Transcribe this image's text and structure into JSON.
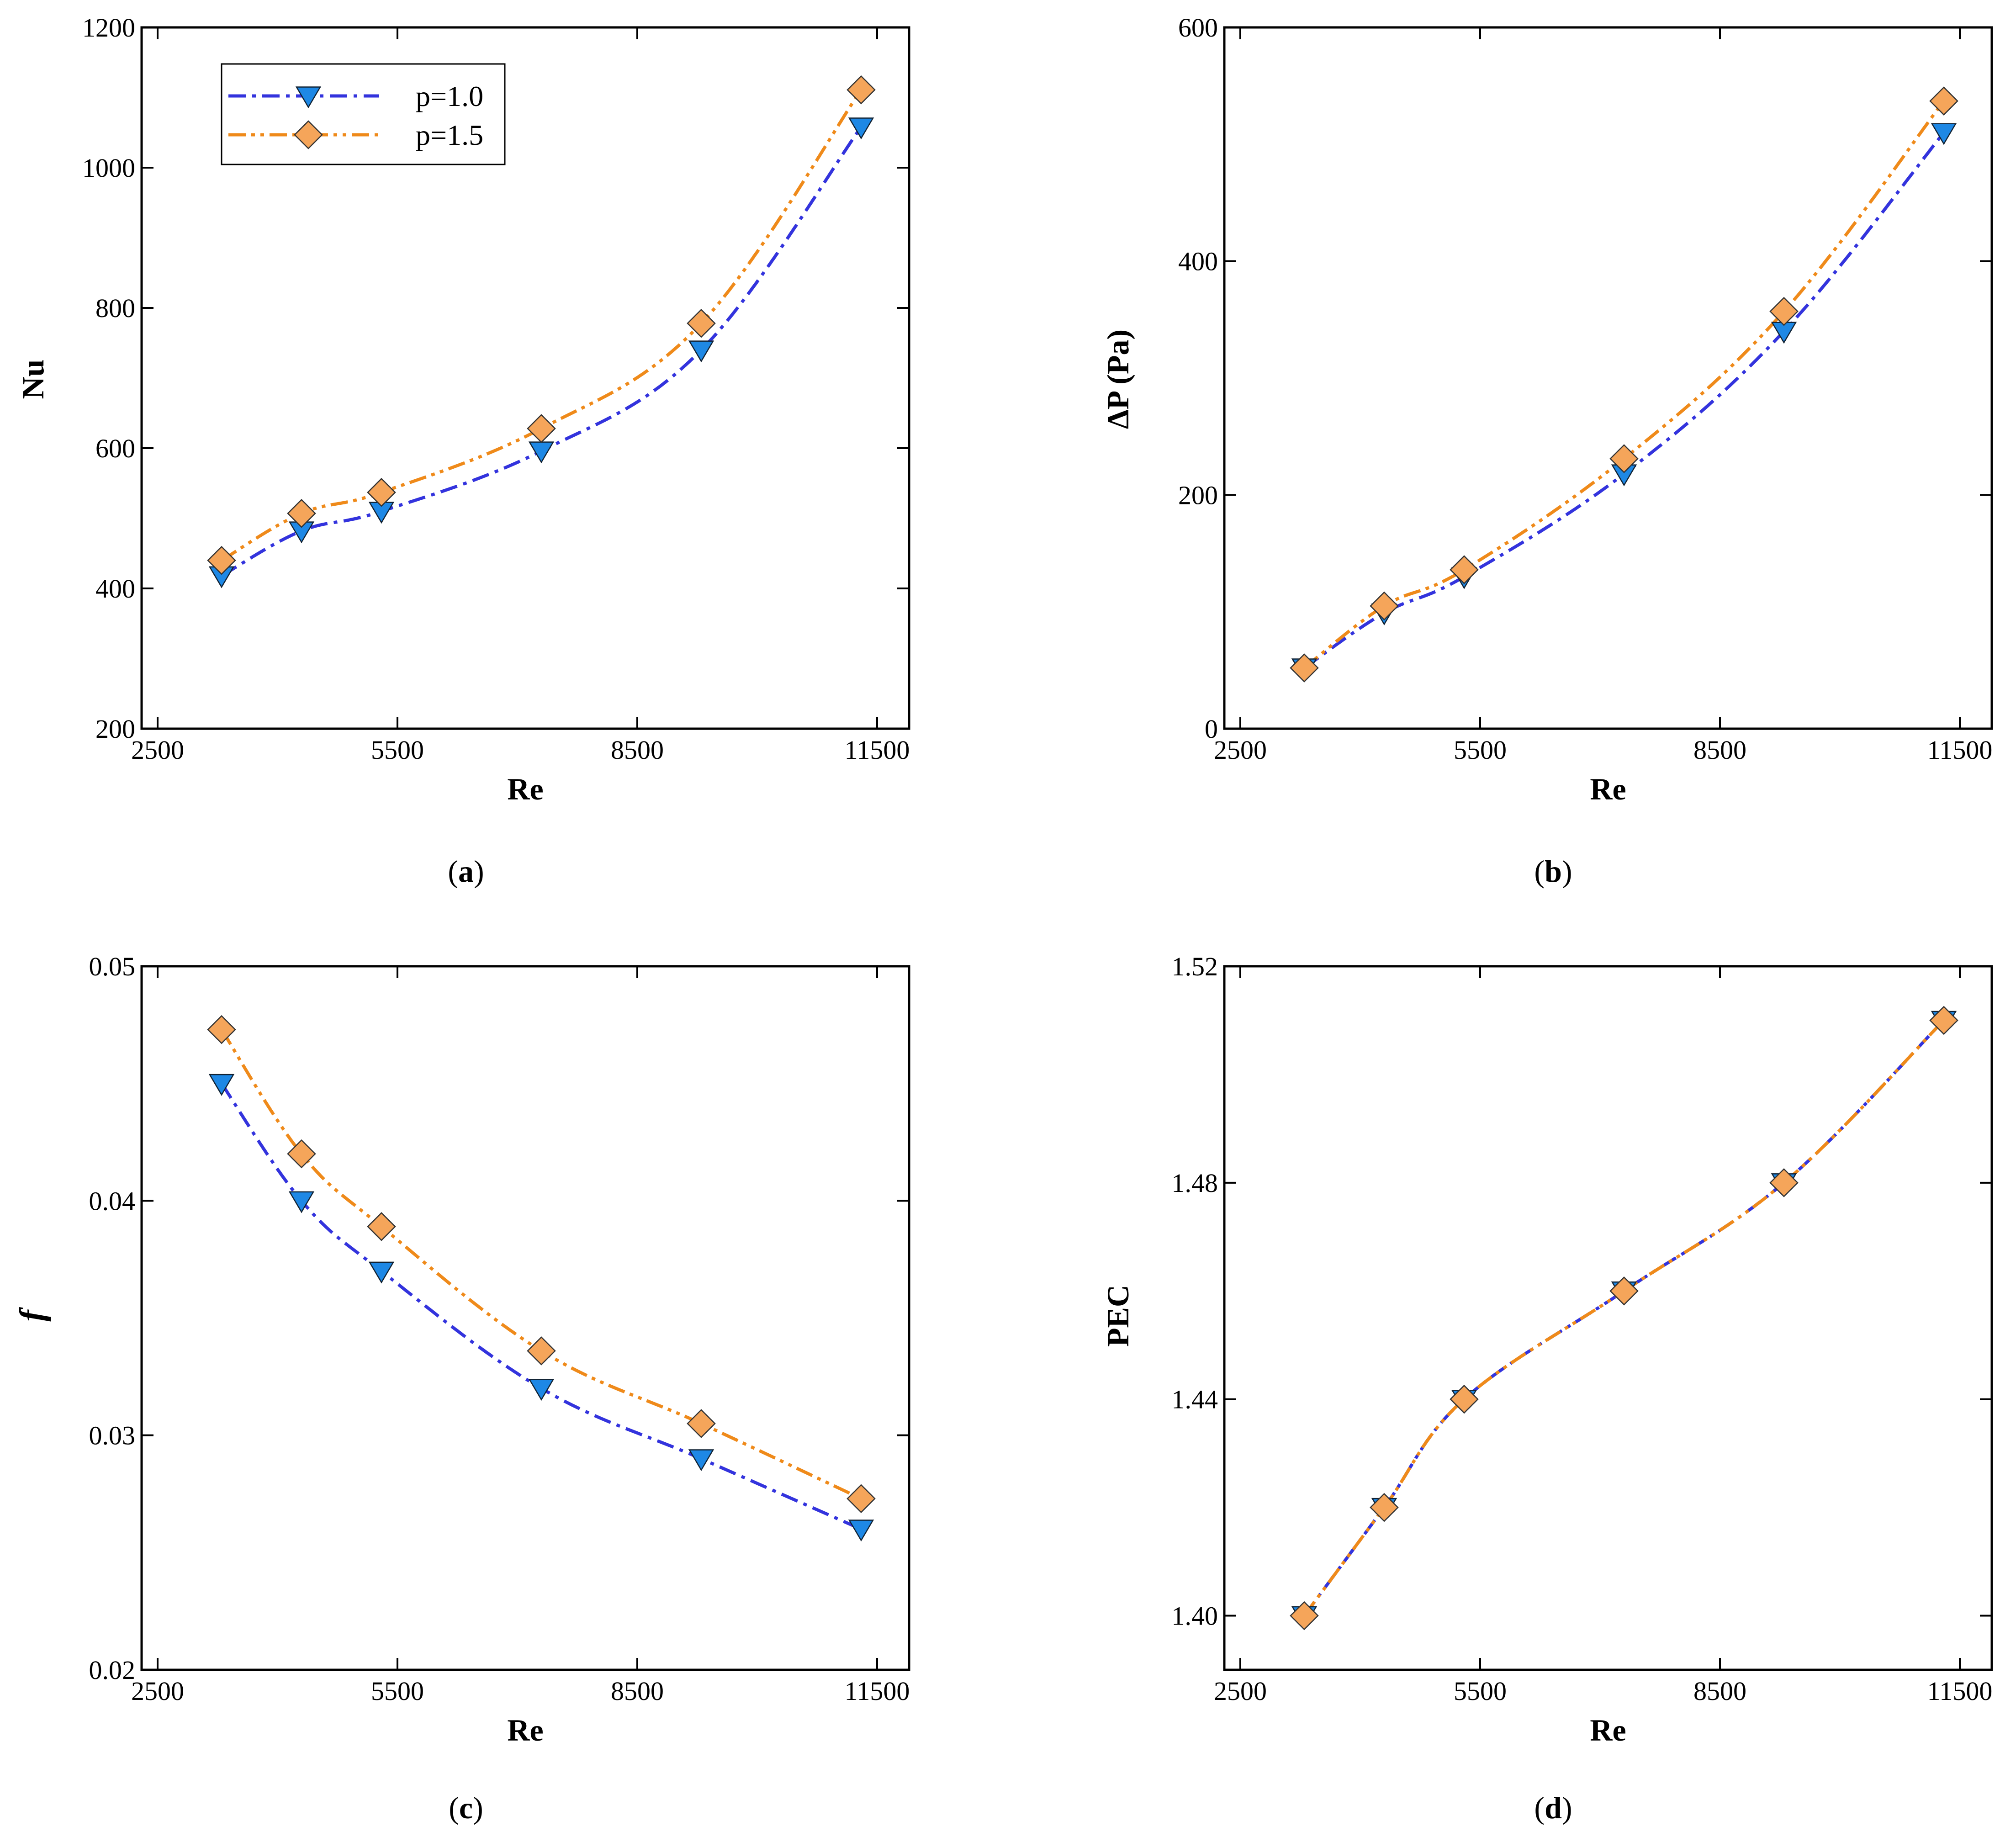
{
  "chart_data": [
    {
      "id": "a",
      "type": "line",
      "panel_label": "a",
      "xlabel": "Re",
      "ylabel": "Nu",
      "ylabel_style": "bold",
      "xlim": [
        2300,
        11900
      ],
      "ylim": [
        200,
        1200
      ],
      "xticks": [
        2500,
        5500,
        8500,
        11500
      ],
      "xtick_labels": [
        "2500",
        "5500",
        "8500",
        "11500"
      ],
      "yticks": [
        200,
        400,
        600,
        800,
        1000,
        1200
      ],
      "ytick_labels": [
        "200",
        "400",
        "600",
        "800",
        "1000",
        "1200"
      ],
      "x": [
        3300,
        4300,
        5300,
        7300,
        9300,
        11300
      ],
      "series": [
        {
          "name": "p=1.0",
          "values": [
            418,
            482,
            510,
            596,
            740,
            1058
          ]
        },
        {
          "name": "p=1.5",
          "values": [
            440,
            507,
            537,
            628,
            778,
            1111
          ]
        }
      ],
      "legend": "top-left"
    },
    {
      "id": "b",
      "type": "line",
      "panel_label": "b",
      "xlabel": "Re",
      "ylabel": "ΔP (Pa)",
      "ylabel_style": "bold",
      "xlim": [
        2300,
        11900
      ],
      "ylim": [
        0,
        600
      ],
      "xticks": [
        2500,
        5500,
        8500,
        11500
      ],
      "xtick_labels": [
        "2500",
        "5500",
        "8500",
        "11500"
      ],
      "yticks": [
        0,
        200,
        400,
        600
      ],
      "ytick_labels": [
        "0",
        "200",
        "400",
        "600"
      ],
      "x": [
        3300,
        4300,
        5300,
        7300,
        9300,
        11300
      ],
      "series": [
        {
          "name": "p=1.0",
          "values": [
            52,
            99,
            130,
            218,
            340,
            510
          ]
        },
        {
          "name": "p=1.5",
          "values": [
            52,
            105,
            136,
            231,
            357,
            537
          ]
        }
      ]
    },
    {
      "id": "c",
      "type": "line",
      "panel_label": "c",
      "xlabel": "Re",
      "ylabel": "f",
      "ylabel_style": "italic",
      "xlim": [
        2300,
        11900
      ],
      "ylim": [
        0.02,
        0.05
      ],
      "xticks": [
        2500,
        5500,
        8500,
        11500
      ],
      "xtick_labels": [
        "2500",
        "5500",
        "8500",
        "11500"
      ],
      "yticks": [
        0.02,
        0.03,
        0.04,
        0.05
      ],
      "ytick_labels": [
        "0.02",
        "0.03",
        "0.04",
        "0.05"
      ],
      "x": [
        3300,
        4300,
        5300,
        7300,
        9300,
        11300
      ],
      "series": [
        {
          "name": "p=1.0",
          "values": [
            0.045,
            0.04,
            0.037,
            0.032,
            0.029,
            0.026
          ]
        },
        {
          "name": "p=1.5",
          "values": [
            0.0473,
            0.042,
            0.0389,
            0.0336,
            0.0305,
            0.0273
          ]
        }
      ]
    },
    {
      "id": "d",
      "type": "line",
      "panel_label": "d",
      "xlabel": "Re",
      "ylabel": "PEC",
      "ylabel_style": "bold",
      "xlim": [
        2300,
        11900
      ],
      "ylim": [
        1.39,
        1.52
      ],
      "xticks": [
        2500,
        5500,
        8500,
        11500
      ],
      "xtick_labels": [
        "2500",
        "5500",
        "8500",
        "11500"
      ],
      "yticks": [
        1.4,
        1.44,
        1.48,
        1.52
      ],
      "ytick_labels": [
        "1.40",
        "1.44",
        "1.48",
        "1.52"
      ],
      "x": [
        3300,
        4300,
        5300,
        7300,
        9300,
        11300
      ],
      "series": [
        {
          "name": "p=1.0",
          "values": [
            1.4,
            1.42,
            1.44,
            1.46,
            1.48,
            1.51
          ]
        },
        {
          "name": "p=1.5",
          "values": [
            1.4,
            1.42,
            1.44,
            1.46,
            1.48,
            1.51
          ]
        }
      ]
    }
  ],
  "legend": {
    "entries": [
      {
        "label": "p=1.0",
        "marker": "triangle-down"
      },
      {
        "label": "p=1.5",
        "marker": "diamond"
      }
    ]
  },
  "colors": {
    "p10_line": "#3333dd",
    "p10_marker": "#1e88e5",
    "p15_line": "#ef8a1a",
    "p15_marker": "#f5a55a",
    "axis": "#000000"
  }
}
